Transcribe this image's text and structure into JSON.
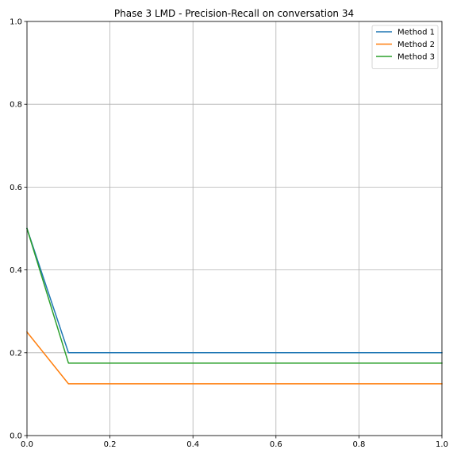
{
  "chart_data": {
    "type": "line",
    "title": "Phase 3 LMD - Precision-Recall on conversation 34",
    "xlabel": "",
    "ylabel": "",
    "xlim": [
      0,
      1
    ],
    "ylim": [
      0,
      1
    ],
    "grid": true,
    "legend_position": "top-right",
    "x_ticks": [
      0,
      0.2,
      0.4,
      0.6,
      0.8,
      1
    ],
    "x_tick_labels": [
      "0.0",
      "0.2",
      "0.4",
      "0.6",
      "0.8",
      "1.0"
    ],
    "y_ticks": [
      0,
      0.2,
      0.4,
      0.6,
      0.8,
      1
    ],
    "y_tick_labels": [
      "0.0",
      "0.2",
      "0.4",
      "0.6",
      "0.8",
      "1.0"
    ],
    "x": [
      0,
      0.1,
      0.2,
      0.3,
      0.4,
      0.5,
      0.6,
      0.7,
      0.8,
      0.9,
      1.0
    ],
    "series": [
      {
        "name": "Method 1",
        "color": "#1f77b4",
        "values": [
          0.5,
          0.2,
          0.2,
          0.2,
          0.2,
          0.2,
          0.2,
          0.2,
          0.2,
          0.2,
          0.2
        ]
      },
      {
        "name": "Method 2",
        "color": "#ff7f0e",
        "values": [
          0.25,
          0.125,
          0.125,
          0.125,
          0.125,
          0.125,
          0.125,
          0.125,
          0.125,
          0.125,
          0.125
        ]
      },
      {
        "name": "Method 3",
        "color": "#2ca02c",
        "values": [
          0.5,
          0.175,
          0.175,
          0.175,
          0.175,
          0.175,
          0.175,
          0.175,
          0.175,
          0.175,
          0.175
        ]
      }
    ]
  }
}
